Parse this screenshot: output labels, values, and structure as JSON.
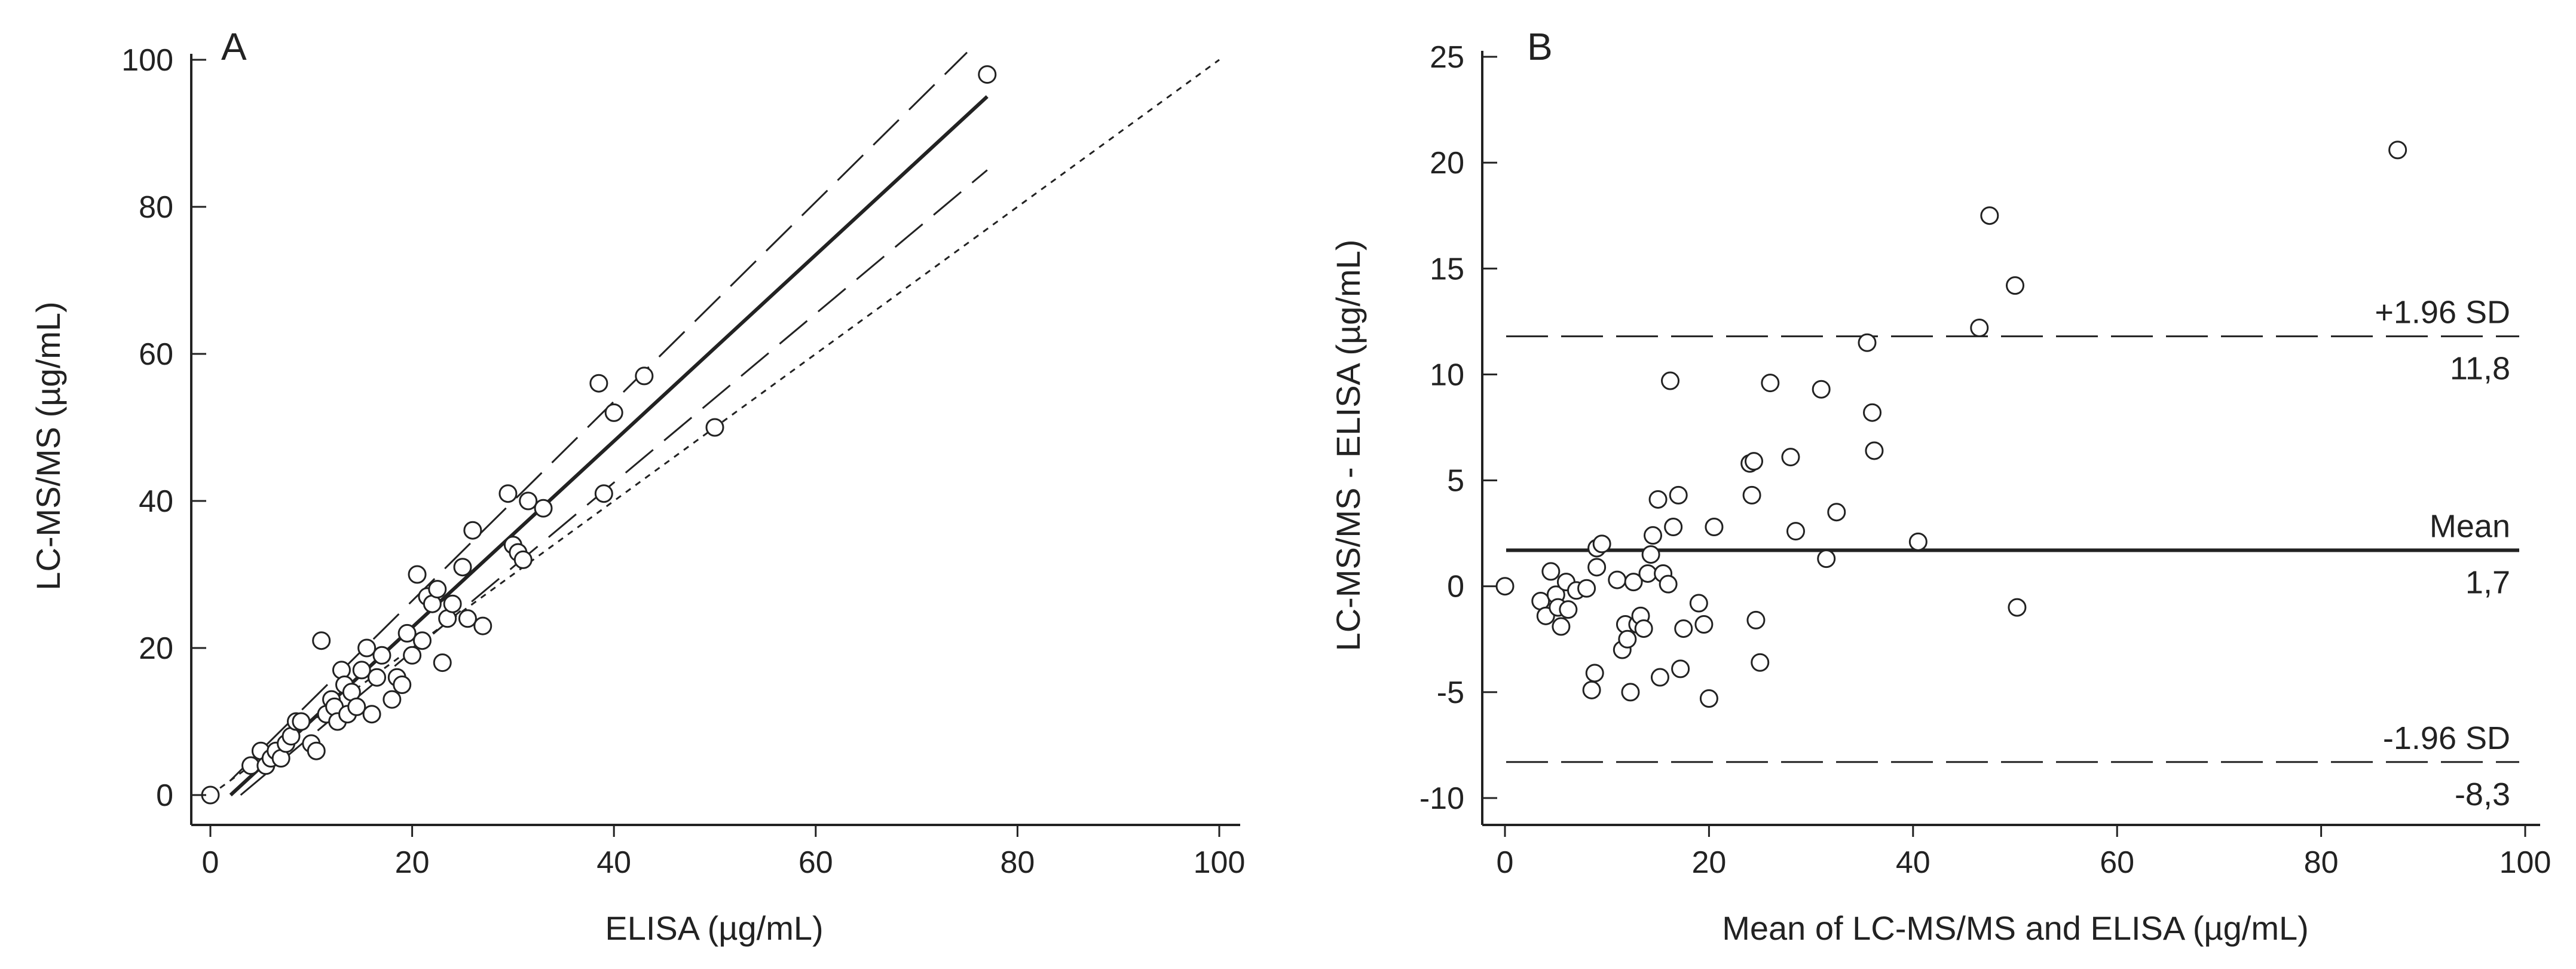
{
  "chart_data": [
    {
      "type": "scatter",
      "panel_label": "A",
      "xlabel": "ELISA (µg/mL)",
      "ylabel": "LC-MS/MS (µg/mL)",
      "xlim": [
        0,
        100
      ],
      "ylim": [
        0,
        100
      ],
      "xticks": [
        0,
        20,
        40,
        60,
        80,
        100
      ],
      "yticks": [
        0,
        20,
        40,
        60,
        80,
        100
      ],
      "xtick_labels": [
        "0",
        "20",
        "40",
        "60",
        "80",
        "100"
      ],
      "ytick_labels": [
        "0",
        "20",
        "40",
        "60",
        "80",
        "100"
      ],
      "lines": [
        {
          "name": "identity",
          "style": "dotted",
          "x": [
            0,
            100
          ],
          "y": [
            0,
            100
          ]
        },
        {
          "name": "regression",
          "style": "solid",
          "x": [
            2,
            77
          ],
          "y": [
            0,
            95
          ]
        },
        {
          "name": "upper-limit",
          "style": "dashed",
          "x": [
            2,
            75
          ],
          "y": [
            2,
            101
          ]
        },
        {
          "name": "lower-limit",
          "style": "dashed",
          "x": [
            3,
            77
          ],
          "y": [
            0,
            85
          ]
        }
      ],
      "series": [
        {
          "name": "samples",
          "x": [
            0,
            4,
            5,
            5.5,
            6,
            6.5,
            7,
            7.5,
            8,
            8.5,
            9,
            10,
            10.5,
            11,
            11.5,
            12,
            12.3,
            12.6,
            13,
            13.3,
            13.6,
            14,
            14.5,
            15,
            15.5,
            16,
            16.5,
            17,
            18,
            18.5,
            19,
            19.5,
            20,
            20.5,
            21,
            21.5,
            22,
            22.5,
            23,
            23.5,
            24,
            25,
            25.5,
            26,
            27,
            29.5,
            30,
            30.5,
            31,
            31.5,
            33,
            38.5,
            39,
            40,
            43,
            50,
            77
          ],
          "y": [
            0,
            4,
            6,
            4,
            5,
            6,
            5,
            7,
            8,
            10,
            10,
            7,
            6,
            21,
            11,
            13,
            12,
            10,
            17,
            15,
            11,
            14,
            12,
            17,
            20,
            11,
            16,
            19,
            13,
            16,
            15,
            22,
            19,
            30,
            21,
            27,
            26,
            28,
            18,
            24,
            26,
            31,
            24,
            36,
            23,
            41,
            34,
            33,
            32,
            40,
            39,
            56,
            41,
            52,
            57,
            50,
            98
          ]
        }
      ]
    },
    {
      "type": "scatter",
      "panel_label": "B",
      "xlabel": "Mean of LC-MS/MS and ELISA (µg/mL)",
      "ylabel": "LC-MS/MS - ELISA (µg/mL)",
      "xlim": [
        0,
        100
      ],
      "ylim": [
        -10,
        25
      ],
      "xticks": [
        0,
        20,
        40,
        60,
        80,
        100
      ],
      "yticks": [
        -10,
        -5,
        0,
        5,
        10,
        15,
        20,
        25
      ],
      "xtick_labels": [
        "0",
        "20",
        "40",
        "60",
        "80",
        "100"
      ],
      "ytick_labels": [
        "-10",
        "-5",
        "0",
        "5",
        "10",
        "15",
        "20",
        "25"
      ],
      "reference_lines": [
        {
          "name": "upper-loa",
          "style": "dashed",
          "value": 11.8,
          "label": "+1.96 SD",
          "value_label": "11,8"
        },
        {
          "name": "mean",
          "style": "solid",
          "value": 1.7,
          "label": "Mean",
          "value_label": "1,7"
        },
        {
          "name": "lower-loa",
          "style": "dashed",
          "value": -8.3,
          "label": "-1.96 SD",
          "value_label": "-8,3"
        }
      ],
      "series": [
        {
          "name": "differences",
          "x": [
            0,
            3.5,
            4,
            4.5,
            5,
            5.2,
            5.5,
            6,
            6.2,
            7,
            8,
            8.5,
            8.8,
            9,
            9,
            9.5,
            11,
            11.5,
            11.8,
            12,
            12.3,
            12.6,
            13,
            13.3,
            13.6,
            14,
            14.3,
            14.5,
            15,
            15.2,
            15.5,
            16,
            16.2,
            16.5,
            17,
            17.2,
            17.5,
            19,
            19.5,
            20,
            20.5,
            24,
            24.2,
            24.4,
            24.6,
            25,
            26,
            28,
            28.5,
            31,
            31.5,
            32.5,
            35.5,
            36,
            36.2,
            40.5,
            46.5,
            47.5,
            50,
            50.2,
            87.5
          ],
          "y": [
            0,
            -0.7,
            -1.4,
            0.7,
            -0.4,
            -1.0,
            -1.9,
            0.2,
            -1.1,
            -0.2,
            -0.1,
            -4.9,
            -4.1,
            0.9,
            1.8,
            2.0,
            0.3,
            -3.0,
            -1.8,
            -2.5,
            -5.0,
            0.2,
            -1.8,
            -1.4,
            -2.0,
            0.6,
            1.5,
            2.4,
            4.1,
            -4.3,
            0.6,
            0.1,
            9.7,
            2.8,
            4.3,
            -3.9,
            -2.0,
            -0.8,
            -1.8,
            -5.3,
            2.8,
            5.8,
            4.3,
            5.9,
            -1.6,
            -3.6,
            9.6,
            6.1,
            2.6,
            9.3,
            1.3,
            3.5,
            11.5,
            8.2,
            6.4,
            2.1,
            12.2,
            17.5,
            14.2,
            -1.0,
            20.6
          ]
        }
      ]
    }
  ]
}
